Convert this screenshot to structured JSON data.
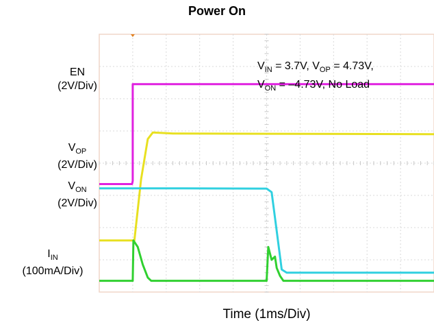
{
  "chart_data": {
    "type": "line",
    "title": "Power On",
    "xlabel": "Time (1ms/Div)",
    "x_divisions": 10,
    "y_divisions": 8,
    "grid": true,
    "channel_labels": [
      {
        "main": "EN",
        "sub": "",
        "unit": "(2V/Div)"
      },
      {
        "main": "V",
        "sub": "OP",
        "unit": "(2V/Div)"
      },
      {
        "main": "V",
        "sub": "ON",
        "unit": "(2V/Div)"
      },
      {
        "main": "I",
        "sub": "IN",
        "unit": "(100mA/Div)"
      }
    ],
    "annotation": {
      "line1": [
        {
          "t": "V",
          "s": "IN",
          "r": " = 3.7V, "
        },
        {
          "t": "V",
          "s": "OP",
          "r": " = 4.73V,"
        }
      ],
      "line2": [
        {
          "t": "V",
          "s": "ON",
          "r": " = –4.73V, No Load"
        }
      ]
    },
    "series": [
      {
        "name": "EN",
        "color": "#e020e0",
        "points": [
          [
            0,
            3.35
          ],
          [
            0.98,
            3.35
          ],
          [
            1.0,
            3.45
          ],
          [
            1.0,
            6.45
          ],
          [
            10,
            6.45
          ]
        ]
      },
      {
        "name": "VOP",
        "color": "#e8e020",
        "points": [
          [
            0,
            1.6
          ],
          [
            1.05,
            1.6
          ],
          [
            1.25,
            3.5
          ],
          [
            1.45,
            4.75
          ],
          [
            1.6,
            4.95
          ],
          [
            2.2,
            4.92
          ],
          [
            10,
            4.9
          ]
        ]
      },
      {
        "name": "VON",
        "color": "#30d0e0",
        "points": [
          [
            0,
            3.22
          ],
          [
            2.5,
            3.22
          ],
          [
            5.0,
            3.21
          ],
          [
            5.15,
            3.1
          ],
          [
            5.3,
            1.9
          ],
          [
            5.45,
            0.7
          ],
          [
            5.6,
            0.6
          ],
          [
            10,
            0.6
          ]
        ]
      },
      {
        "name": "IIN",
        "color": "#30d030",
        "points": [
          [
            0,
            0.35
          ],
          [
            1.0,
            0.35
          ],
          [
            1.02,
            1.6
          ],
          [
            1.15,
            1.4
          ],
          [
            1.3,
            0.85
          ],
          [
            1.45,
            0.45
          ],
          [
            1.55,
            0.35
          ],
          [
            5.0,
            0.35
          ],
          [
            5.05,
            1.4
          ],
          [
            5.15,
            1.0
          ],
          [
            5.25,
            1.1
          ],
          [
            5.3,
            0.75
          ],
          [
            5.4,
            0.5
          ],
          [
            5.5,
            0.35
          ],
          [
            10,
            0.35
          ]
        ]
      }
    ]
  }
}
